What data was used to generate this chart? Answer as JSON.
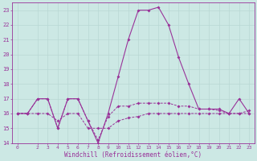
{
  "title": "",
  "xlabel": "Windchill (Refroidissement éolien,°C)",
  "bg_color": "#cce8e4",
  "line_color": "#993399",
  "grid_color": "#b8d8d4",
  "hours": [
    0,
    1,
    2,
    3,
    4,
    5,
    6,
    7,
    8,
    9,
    10,
    11,
    12,
    13,
    14,
    15,
    16,
    17,
    18,
    19,
    20,
    21,
    22,
    23
  ],
  "line1": [
    16,
    16,
    17,
    17,
    15,
    17,
    17,
    15.5,
    14,
    16,
    18.5,
    21,
    23,
    23,
    23.2,
    22,
    19.8,
    18,
    16.3,
    16.3,
    16.3,
    16,
    17,
    16
  ],
  "line2": [
    16,
    16,
    17,
    17,
    15,
    17,
    17,
    15.5,
    14.2,
    15.8,
    16.5,
    16.5,
    16.7,
    16.7,
    16.7,
    16.7,
    16.5,
    16.5,
    16.3,
    16.3,
    16.2,
    16,
    16,
    16.2
  ],
  "line3": [
    16,
    16,
    16,
    16,
    15.5,
    16,
    16,
    15,
    15,
    15,
    15.5,
    15.7,
    15.8,
    16,
    16,
    16,
    16,
    16,
    16,
    16,
    16,
    16,
    16,
    16
  ],
  "ylim_min": 14,
  "ylim_max": 23.5,
  "xlim_min": -0.5,
  "xlim_max": 23.5,
  "yticks": [
    14,
    15,
    16,
    17,
    18,
    19,
    20,
    21,
    22,
    23
  ],
  "xticks": [
    0,
    2,
    3,
    4,
    5,
    6,
    7,
    8,
    9,
    10,
    11,
    12,
    13,
    14,
    15,
    16,
    17,
    18,
    19,
    20,
    21,
    22,
    23
  ]
}
